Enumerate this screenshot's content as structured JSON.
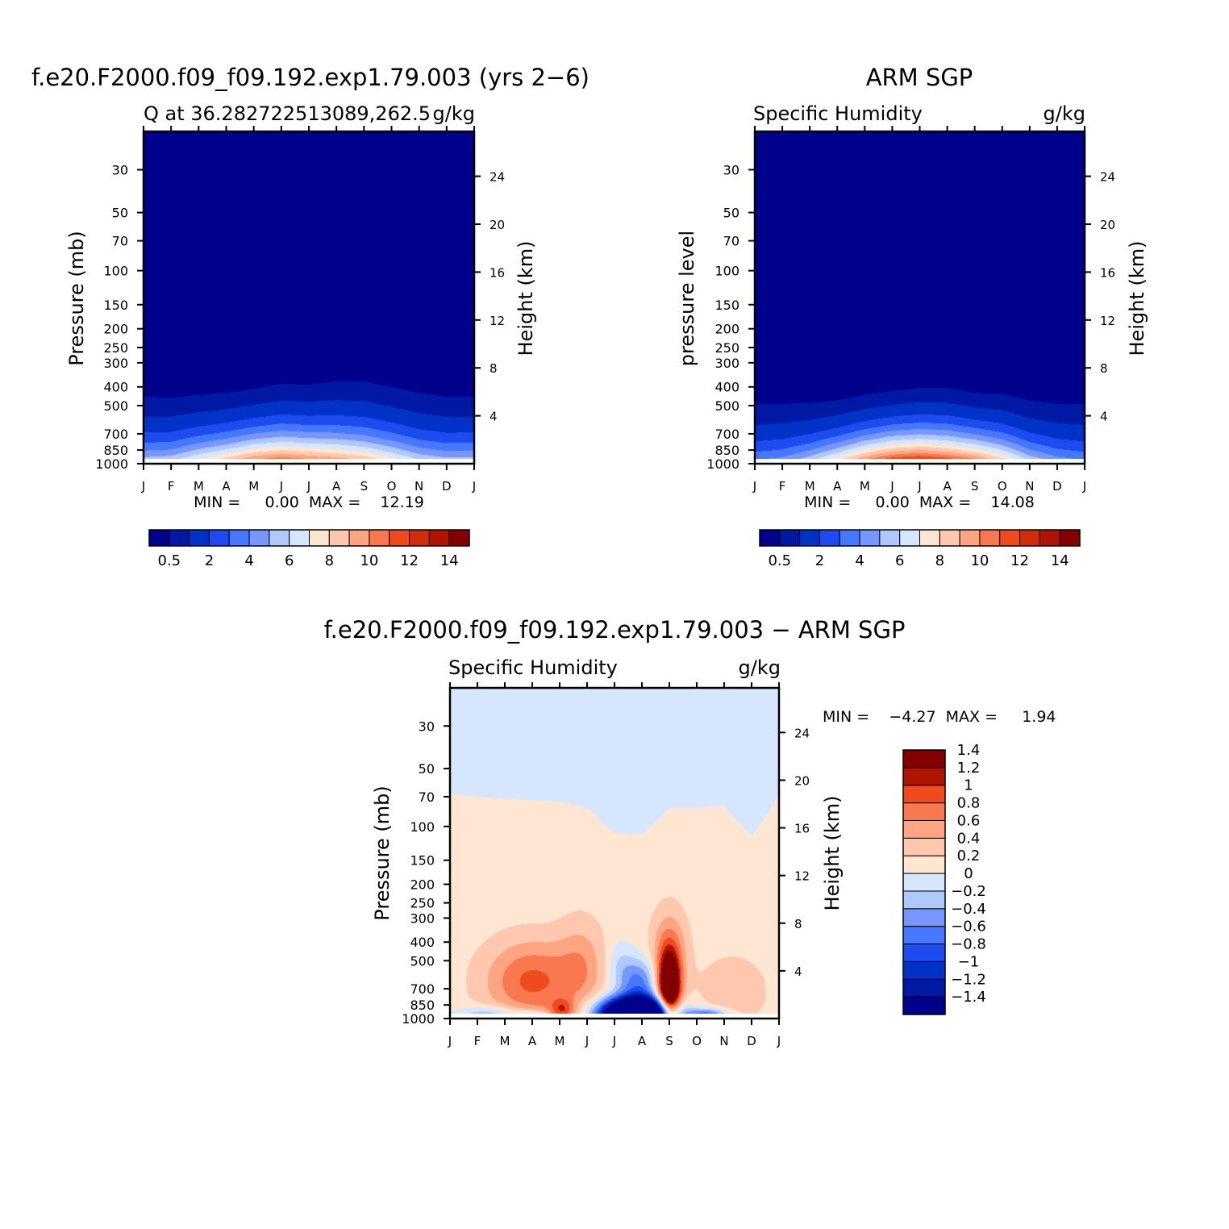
{
  "palettes": {
    "q": [
      "#00008c",
      "#0019a5",
      "#0032c8",
      "#1e4bf0",
      "#4678ff",
      "#7896ff",
      "#afc8ff",
      "#d7e6ff",
      "#ffe6d2",
      "#ffc8af",
      "#ffa582",
      "#fa7850",
      "#f04b1e",
      "#d22d0a",
      "#af1400",
      "#820000"
    ],
    "diff": [
      "#00008c",
      "#0019a5",
      "#0032c8",
      "#1e4bf0",
      "#4678ff",
      "#7896ff",
      "#afc8ff",
      "#d7e6ff",
      "#ffe6d2",
      "#ffc8af",
      "#ffa582",
      "#fa7850",
      "#f04b1e",
      "#af1400",
      "#820000"
    ]
  },
  "chart_data": [
    {
      "id": "model",
      "type": "heatmap",
      "title": "f.e20.F2000.f09_f09.192.exp1.79.003 (yrs 2−6)",
      "subtitle_left": "Q at 36.282722513089,262.5",
      "subtitle_right": "g/kg",
      "ylabel": "Pressure (mb)",
      "ylabel_right": "Height (km)",
      "months": [
        "J",
        "F",
        "M",
        "A",
        "M",
        "J",
        "J",
        "A",
        "S",
        "O",
        "N",
        "D",
        "J"
      ],
      "pressure_ticks": [
        30,
        50,
        70,
        100,
        150,
        200,
        250,
        300,
        400,
        500,
        700,
        850,
        1000
      ],
      "pressure_tick_labels": [
        "30",
        "50",
        "70",
        "100",
        "150",
        "200",
        "250",
        "300",
        "400",
        "500",
        "700",
        "850",
        "1000"
      ],
      "height_ticks": [
        4,
        8,
        12,
        16,
        20,
        24
      ],
      "height_tick_labels": [
        "4",
        "8",
        "12",
        "16",
        "20",
        "24"
      ],
      "stats_text": "MIN =     0.00  MAX =    12.19",
      "min": 0.0,
      "max": 12.19,
      "levels": [
        0.5,
        1,
        2,
        3,
        4,
        5,
        6,
        7,
        8,
        9,
        10,
        11,
        12,
        13,
        14
      ],
      "colorbar_labels": [
        {
          "at": 0,
          "text": "0.5"
        },
        {
          "at": 2,
          "text": "2"
        },
        {
          "at": 4,
          "text": "4"
        },
        {
          "at": 6,
          "text": "6"
        },
        {
          "at": 8,
          "text": "8"
        },
        {
          "at": 10,
          "text": "10"
        },
        {
          "at": 12,
          "text": "12"
        },
        {
          "at": 14,
          "text": "14"
        }
      ],
      "surface_value": [
        6.2,
        6.5,
        8.2,
        9.7,
        11.5,
        12.19,
        11.6,
        10.9,
        10.0,
        8.5,
        6.8,
        6.1,
        6.2
      ],
      "moist_top_hpa": [
        450,
        455,
        440,
        430,
        410,
        385,
        390,
        375,
        375,
        400,
        430,
        450,
        450
      ]
    },
    {
      "id": "obs",
      "type": "heatmap",
      "title": "ARM SGP",
      "subtitle_left": "Specific Humidity",
      "subtitle_right": "g/kg",
      "ylabel": "pressure level",
      "ylabel_right": "Height (km)",
      "months": [
        "J",
        "F",
        "M",
        "A",
        "M",
        "J",
        "J",
        "A",
        "S",
        "O",
        "N",
        "D",
        "J"
      ],
      "pressure_ticks": [
        30,
        50,
        70,
        100,
        150,
        200,
        250,
        300,
        400,
        500,
        700,
        850,
        1000
      ],
      "pressure_tick_labels": [
        "30",
        "50",
        "70",
        "100",
        "150",
        "200",
        "250",
        "300",
        "400",
        "500",
        "700",
        "850",
        "1000"
      ],
      "height_ticks": [
        4,
        8,
        12,
        16,
        20,
        24
      ],
      "height_tick_labels": [
        "4",
        "8",
        "12",
        "16",
        "20",
        "24"
      ],
      "stats_text": "MIN =     0.00  MAX =    14.08",
      "min": 0.0,
      "max": 14.08,
      "levels": [
        0.5,
        1,
        2,
        3,
        4,
        5,
        6,
        7,
        8,
        9,
        10,
        11,
        12,
        13,
        14
      ],
      "colorbar_labels": [
        {
          "at": 0,
          "text": "0.5"
        },
        {
          "at": 2,
          "text": "2"
        },
        {
          "at": 4,
          "text": "4"
        },
        {
          "at": 6,
          "text": "6"
        },
        {
          "at": 8,
          "text": "8"
        },
        {
          "at": 10,
          "text": "10"
        },
        {
          "at": 12,
          "text": "12"
        },
        {
          "at": 14,
          "text": "14"
        }
      ],
      "surface_value": [
        4.5,
        5.0,
        6.5,
        8.8,
        11.5,
        13.5,
        14.08,
        13.2,
        11.8,
        9.5,
        6.6,
        5.1,
        4.5
      ],
      "moist_top_hpa": [
        490,
        490,
        485,
        470,
        440,
        420,
        405,
        405,
        430,
        435,
        470,
        490,
        490
      ]
    },
    {
      "id": "diff",
      "type": "heatmap",
      "title": "f.e20.F2000.f09_f09.192.exp1.79.003 − ARM SGP",
      "subtitle_left": "Specific Humidity",
      "subtitle_right": "g/kg",
      "ylabel": "Pressure (mb)",
      "ylabel_right": "Height (km)",
      "months": [
        "J",
        "F",
        "M",
        "A",
        "M",
        "J",
        "J",
        "A",
        "S",
        "O",
        "N",
        "D",
        "J"
      ],
      "pressure_ticks": [
        30,
        50,
        70,
        100,
        150,
        200,
        250,
        300,
        400,
        500,
        700,
        850,
        1000
      ],
      "pressure_tick_labels": [
        "30",
        "50",
        "70",
        "100",
        "150",
        "200",
        "250",
        "300",
        "400",
        "500",
        "700",
        "850",
        "1000"
      ],
      "height_ticks": [
        4,
        8,
        12,
        16,
        20,
        24
      ],
      "height_tick_labels": [
        "4",
        "8",
        "12",
        "16",
        "20",
        "24"
      ],
      "stats_text": "MIN =    −4.27  MAX =     1.94",
      "min": -4.27,
      "max": 1.94,
      "levels": [
        -1.4,
        -1.2,
        -1.0,
        -0.8,
        -0.6,
        -0.4,
        -0.2,
        0,
        0.2,
        0.4,
        0.6,
        0.8,
        1.0,
        1.2,
        1.4
      ],
      "level_labels": [
        "−1.4",
        "−1.2",
        "−1",
        "−0.8",
        "−0.6",
        "−0.4",
        "−0.2",
        "0",
        "0.2",
        "0.4",
        "0.6",
        "0.8",
        "1",
        "1.2",
        "1.4"
      ],
      "zero_boundary_hpa": [
        68,
        70,
        72,
        73,
        74,
        80,
        108,
        110,
        80,
        80,
        78,
        112,
        68
      ],
      "features": [
        {
          "month": 6.8,
          "p": 960,
          "value": -4.27,
          "sx": 0.85,
          "sp": 130
        },
        {
          "month": 8.0,
          "p": 720,
          "value": 1.94,
          "sx": 0.28,
          "sp": 220
        },
        {
          "month": 8.0,
          "p": 450,
          "value": 0.55,
          "sx": 0.45,
          "sp": 160
        },
        {
          "month": 3.0,
          "p": 640,
          "value": 0.75,
          "sx": 1.2,
          "sp": 220
        },
        {
          "month": 4.8,
          "p": 520,
          "value": 0.35,
          "sx": 0.6,
          "sp": 200
        },
        {
          "month": 4.1,
          "p": 900,
          "value": 0.6,
          "sx": 0.3,
          "sp": 80
        },
        {
          "month": 6.9,
          "p": 650,
          "value": -0.75,
          "sx": 0.45,
          "sp": 130
        },
        {
          "month": 6.2,
          "p": 540,
          "value": -0.3,
          "sx": 0.35,
          "sp": 120
        },
        {
          "month": 1.5,
          "p": 960,
          "value": -0.55,
          "sx": 0.9,
          "sp": 70
        },
        {
          "month": 3.0,
          "p": 975,
          "value": -0.8,
          "sx": 0.4,
          "sp": 40
        },
        {
          "month": 9.4,
          "p": 960,
          "value": -0.9,
          "sx": 0.55,
          "sp": 55
        },
        {
          "month": 10.3,
          "p": 720,
          "value": 0.25,
          "sx": 0.9,
          "sp": 220
        }
      ]
    }
  ]
}
